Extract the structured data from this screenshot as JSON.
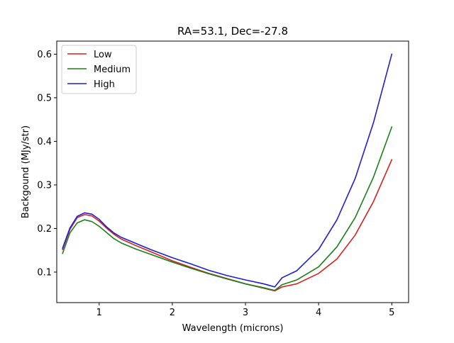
{
  "chart_data": {
    "type": "line",
    "title": "RA=53.1, Dec=-27.8",
    "xlabel": "Wavelength (microns)",
    "ylabel": "Backgound (MJy/str)",
    "xlim": [
      0.42,
      5.23
    ],
    "ylim": [
      0.03,
      0.63
    ],
    "xticks": [
      1,
      2,
      3,
      4,
      5
    ],
    "xtick_labels": [
      "1",
      "2",
      "3",
      "4",
      "5"
    ],
    "yticks": [
      0.1,
      0.2,
      0.3,
      0.4,
      0.5,
      0.6
    ],
    "ytick_labels": [
      "0.1",
      "0.2",
      "0.3",
      "0.4",
      "0.5",
      "0.6"
    ],
    "grid": false,
    "legend_position": "upper-left",
    "x": [
      0.5,
      0.6,
      0.7,
      0.8,
      0.9,
      1.0,
      1.1,
      1.2,
      1.3,
      1.5,
      1.7,
      2.0,
      2.25,
      2.5,
      2.75,
      3.0,
      3.25,
      3.4,
      3.5,
      3.7,
      4.0,
      4.25,
      4.5,
      4.75,
      5.0
    ],
    "series": [
      {
        "name": "Low",
        "color": "#d62020",
        "values": [
          0.152,
          0.198,
          0.225,
          0.232,
          0.229,
          0.217,
          0.201,
          0.187,
          0.176,
          0.161,
          0.147,
          0.126,
          0.111,
          0.097,
          0.085,
          0.073,
          0.063,
          0.057,
          0.066,
          0.073,
          0.097,
          0.13,
          0.185,
          0.262,
          0.358
        ]
      },
      {
        "name": "Medium",
        "color": "#1a7f1a",
        "values": [
          0.143,
          0.19,
          0.213,
          0.22,
          0.216,
          0.205,
          0.191,
          0.177,
          0.167,
          0.153,
          0.141,
          0.123,
          0.109,
          0.096,
          0.084,
          0.073,
          0.064,
          0.058,
          0.071,
          0.082,
          0.112,
          0.158,
          0.225,
          0.318,
          0.433
        ]
      },
      {
        "name": "High",
        "color": "#1f1fcf",
        "values": [
          0.155,
          0.201,
          0.228,
          0.236,
          0.233,
          0.221,
          0.204,
          0.19,
          0.18,
          0.166,
          0.152,
          0.133,
          0.119,
          0.104,
          0.092,
          0.082,
          0.073,
          0.066,
          0.087,
          0.103,
          0.152,
          0.22,
          0.315,
          0.443,
          0.6
        ]
      }
    ]
  }
}
